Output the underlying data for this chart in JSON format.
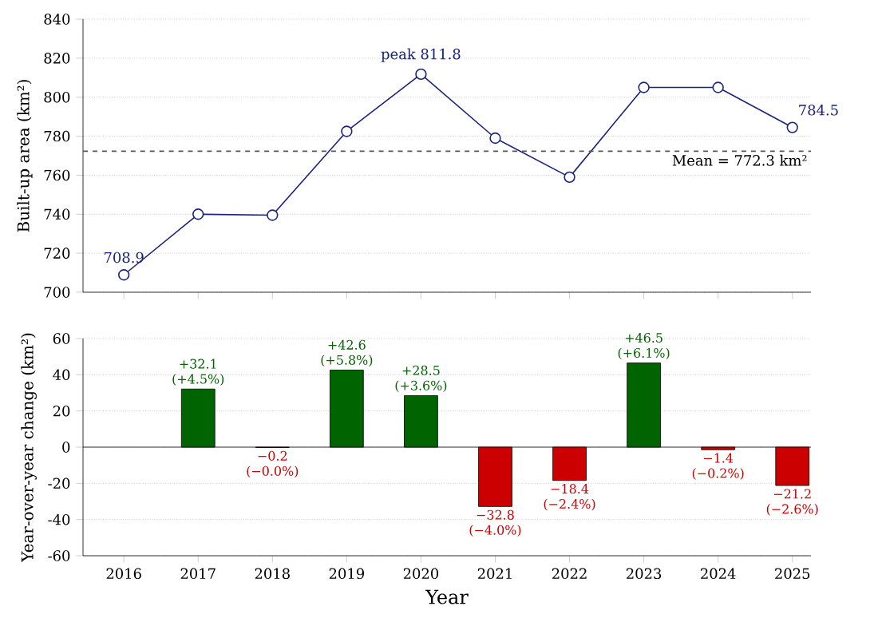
{
  "chart_data": [
    {
      "type": "line",
      "categories": [
        "2016",
        "2017",
        "2018",
        "2019",
        "2020",
        "2021",
        "2022",
        "2023",
        "2024",
        "2025"
      ],
      "series": [
        {
          "color": "#1a237e",
          "values": [
            708.9,
            740,
            739.5,
            782.5,
            811.8,
            779,
            759,
            805,
            805,
            784.5
          ]
        }
      ],
      "ylabel": "Built-up area (km²)",
      "ylim": [
        700,
        840
      ],
      "yticks": [
        700,
        720,
        740,
        760,
        780,
        800,
        820,
        840
      ],
      "marker": "circle",
      "line_style": "solid",
      "grid": "y",
      "tick_labels": "y",
      "ref_lines": [
        {
          "axis": "y",
          "value": 772.3,
          "label": "Mean = 772.3 km²",
          "color": "#555555",
          "line_style": "dashed"
        }
      ],
      "annotations": [
        {
          "text": "708.9",
          "x": "2016",
          "y": 708.9
        },
        {
          "text": "peak 811.8",
          "x": "2020",
          "y": 811.8
        },
        {
          "text": "784.5",
          "x": "2025",
          "y": 784.5
        }
      ]
    },
    {
      "type": "bar",
      "categories": [
        "2016",
        "2017",
        "2018",
        "2019",
        "2020",
        "2021",
        "2022",
        "2023",
        "2024",
        "2025"
      ],
      "values": [
        null,
        32.1,
        -0.2,
        42.6,
        28.5,
        -32.8,
        -18.4,
        46.5,
        -1.4,
        -21.2
      ],
      "colors": [
        "#006400",
        "#006400",
        "#cc0000",
        "#006400",
        "#006400",
        "#cc0000",
        "#cc0000",
        "#006400",
        "#cc0000",
        "#cc0000"
      ],
      "value_labels": [
        null,
        "+32.1 (+4.5%)",
        "−0.2 (−0.0%)",
        "+42.6 (+5.8%)",
        "+28.5 (+3.6%)",
        "−32.8 (−4.0%)",
        "−18.4 (−2.4%)",
        "+46.5 (+6.1%)",
        "−1.4 (−0.2%)",
        "−21.2 (−2.6%)"
      ],
      "xlabel": "Year",
      "ylabel": "Year-over-year change (km²)",
      "ylim": [
        -60,
        60
      ],
      "yticks": [
        -60,
        -40,
        -20,
        0,
        20,
        40,
        60
      ],
      "grid": "y"
    }
  ]
}
